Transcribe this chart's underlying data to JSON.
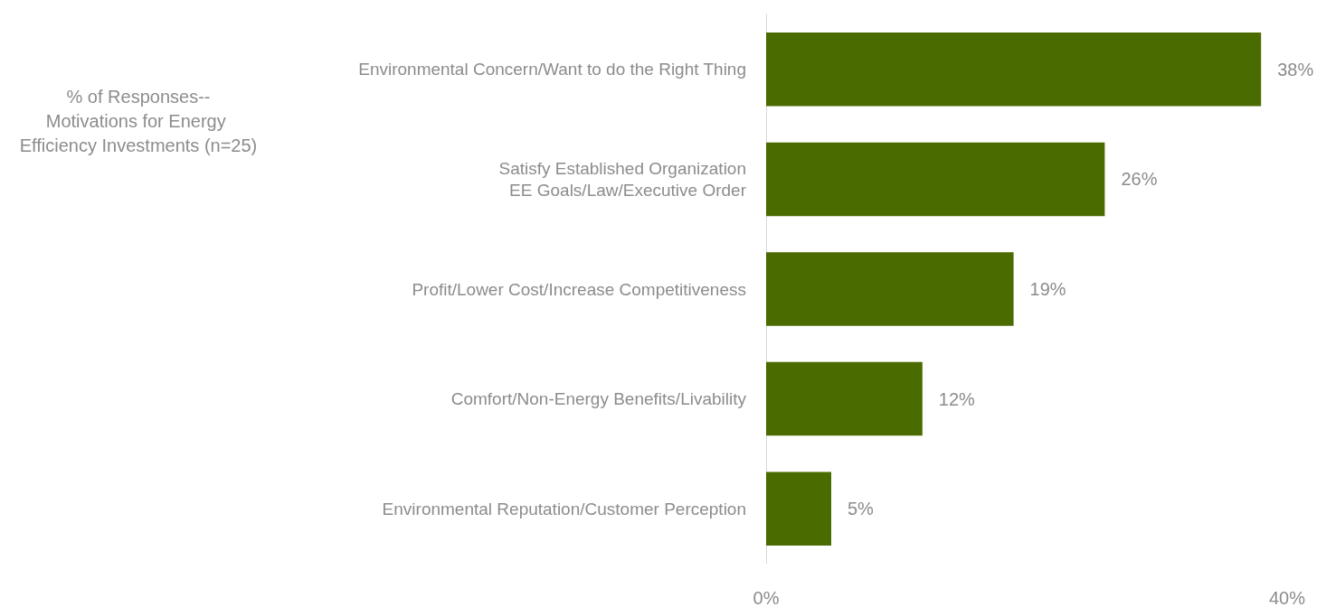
{
  "chart_data": {
    "type": "bar",
    "orientation": "horizontal",
    "title": "% of Responses--Motivations for Energy Efficiency Investments (n=25)",
    "categories": [
      "Environmental Concern/Want to do the Right Thing",
      "Satisfy Established Organization EE Goals/Law/Executive Order",
      "Profit/Lower Cost/Increase Competitiveness",
      "Comfort/Non-Energy Benefits/Livability",
      "Environmental Reputation/Customer Perception"
    ],
    "values": [
      38,
      26,
      19,
      12,
      5
    ],
    "value_labels": [
      "38%",
      "26%",
      "19%",
      "12%",
      "5%"
    ],
    "color": "#4a6b00",
    "xlim": [
      0,
      40
    ],
    "xticks": [
      {
        "value": 0,
        "label": "0%"
      },
      {
        "value": 40,
        "label": "40%"
      }
    ],
    "grid": false
  }
}
